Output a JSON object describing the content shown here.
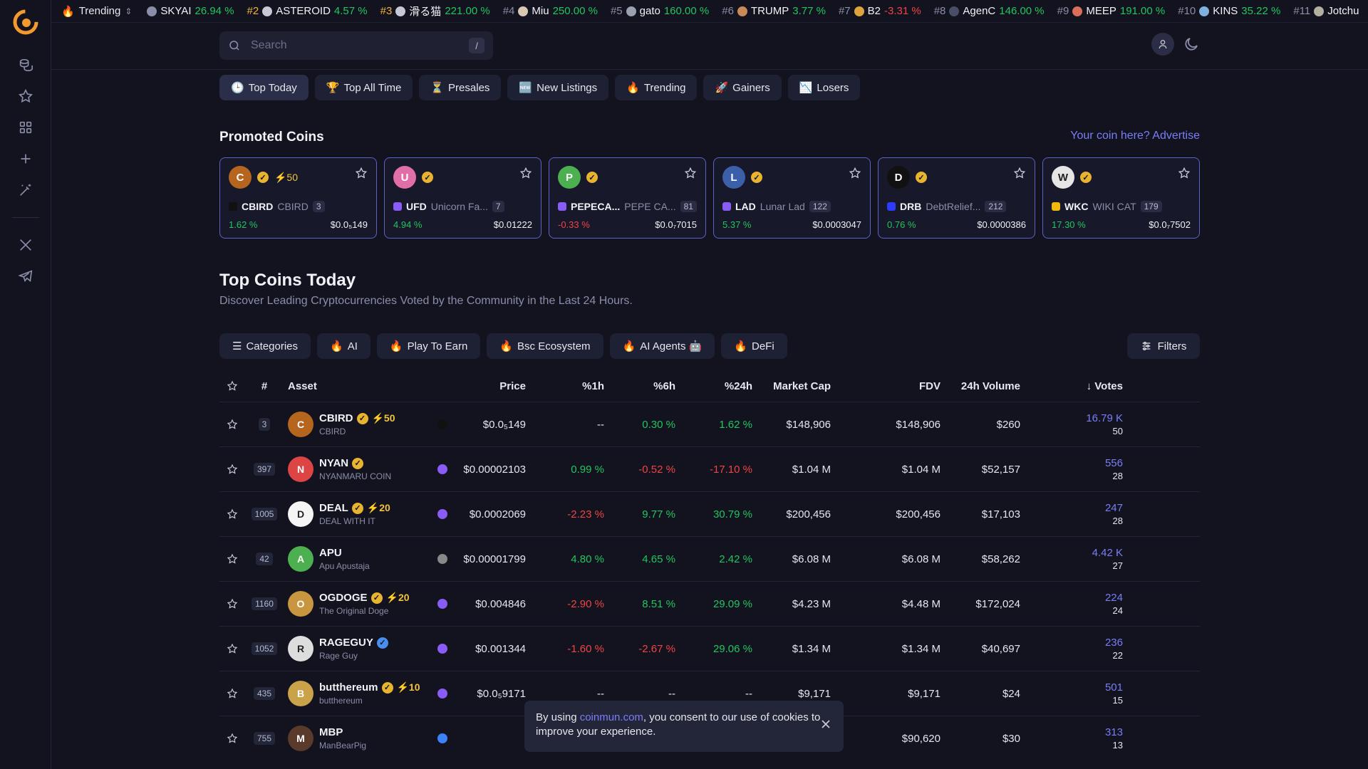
{
  "trending": {
    "label": "Trending",
    "items": [
      {
        "rank": "",
        "sym": "SKYAI",
        "change": "26.94 %",
        "dir": "pos",
        "color": "#8a8ea8"
      },
      {
        "rank": "#2",
        "sym": "ASTEROID",
        "change": "4.57 %",
        "dir": "pos",
        "color": "#c6c8d6"
      },
      {
        "rank": "#3",
        "sym": "滑る猫",
        "change": "221.00 %",
        "dir": "pos",
        "color": "#c6c8d6"
      },
      {
        "rank": "#4",
        "sym": "Miu",
        "change": "250.00 %",
        "dir": "pos",
        "color": "#d9c7b4"
      },
      {
        "rank": "#5",
        "sym": "gato",
        "change": "160.00 %",
        "dir": "pos",
        "color": "#9aa0b0"
      },
      {
        "rank": "#6",
        "sym": "TRUMP",
        "change": "3.77 %",
        "dir": "pos",
        "color": "#c98a5a"
      },
      {
        "rank": "#7",
        "sym": "B2",
        "change": "-3.31 %",
        "dir": "neg",
        "color": "#e0a33c"
      },
      {
        "rank": "#8",
        "sym": "AgenC",
        "change": "146.00 %",
        "dir": "pos",
        "color": "#4a4d66"
      },
      {
        "rank": "#9",
        "sym": "MEEP",
        "change": "191.00 %",
        "dir": "pos",
        "color": "#d96f5a"
      },
      {
        "rank": "#10",
        "sym": "KINS",
        "change": "35.22 %",
        "dir": "pos",
        "color": "#7fb0e0"
      },
      {
        "rank": "#11",
        "sym": "Jotchu",
        "change": "",
        "dir": "pos",
        "color": "#b4b0a0"
      }
    ]
  },
  "search": {
    "placeholder": "Search",
    "shortcut": "/"
  },
  "tabs": [
    {
      "icon": "🕒",
      "label": "Top Today"
    },
    {
      "icon": "🏆",
      "label": "Top All Time"
    },
    {
      "icon": "⏳",
      "label": "Presales"
    },
    {
      "icon": "🆕",
      "label": "New Listings"
    },
    {
      "icon": "🔥",
      "label": "Trending"
    },
    {
      "icon": "🚀",
      "label": "Gainers"
    },
    {
      "icon": "📉",
      "label": "Losers"
    }
  ],
  "promoted": {
    "title": "Promoted Coins",
    "advertise": "Your coin here? Advertise",
    "coins": [
      {
        "sym": "CBIRD",
        "name": "CBIRD",
        "badge": "3",
        "change": "1.62 %",
        "dir": "pos",
        "price": "$0.0₅149",
        "boost": "⚡50",
        "avatar": "#b5651d",
        "chain": "#111111",
        "initial": "C"
      },
      {
        "sym": "UFD",
        "name": "Unicorn Fa...",
        "badge": "7",
        "change": "4.94 %",
        "dir": "pos",
        "price": "$0.01222",
        "boost": "",
        "avatar": "#e06fa8",
        "chain": "#8a5cf6",
        "initial": "U"
      },
      {
        "sym": "PEPECA...",
        "name": "PEPE CA...",
        "badge": "81",
        "change": "-0.33 %",
        "dir": "neg",
        "price": "$0.0₇7015",
        "boost": "",
        "avatar": "#4caf50",
        "chain": "#8a5cf6",
        "initial": "P"
      },
      {
        "sym": "LAD",
        "name": "Lunar Lad",
        "badge": "122",
        "change": "5.37 %",
        "dir": "pos",
        "price": "$0.0003047",
        "boost": "",
        "avatar": "#3b5fa8",
        "chain": "#8a5cf6",
        "initial": "L"
      },
      {
        "sym": "DRB",
        "name": "DebtRelief...",
        "badge": "212",
        "change": "0.76 %",
        "dir": "pos",
        "price": "$0.0000386",
        "boost": "",
        "avatar": "#111111",
        "chain": "#2b3cff",
        "initial": "D"
      },
      {
        "sym": "WKC",
        "name": "WIKI CAT",
        "badge": "179",
        "change": "17.30 %",
        "dir": "pos",
        "price": "$0.0₇7502",
        "boost": "",
        "avatar": "#e6e6e6",
        "chain": "#f0b90b",
        "initial": "W"
      }
    ]
  },
  "section": {
    "title": "Top Coins Today",
    "subtitle": "Discover Leading Cryptocurrencies Voted by the Community in the Last 24 Hours."
  },
  "categories": [
    {
      "icon": "☰",
      "label": "Categories"
    },
    {
      "icon": "🔥",
      "label": "AI"
    },
    {
      "icon": "🔥",
      "label": "Play To Earn"
    },
    {
      "icon": "🔥",
      "label": "Bsc Ecosystem"
    },
    {
      "icon": "🔥",
      "label": "AI Agents 🤖"
    },
    {
      "icon": "🔥",
      "label": "DeFi"
    }
  ],
  "filters_label": "Filters",
  "table": {
    "headers": [
      "#",
      "Asset",
      "Price",
      "%1h",
      "%6h",
      "%24h",
      "Market Cap",
      "FDV",
      "24h Volume",
      "↓ Votes"
    ],
    "rows": [
      {
        "rank": "3",
        "name": "CBIRD",
        "sub": "CBIRD",
        "boost": "⚡50",
        "verified": "gold",
        "avatar": "#b5651d",
        "initial": "C",
        "chain": "#111111",
        "price": "$0.0₅149",
        "h1": "--",
        "h1d": "neu",
        "h6": "0.30 %",
        "h6d": "pos",
        "h24": "1.62 %",
        "h24d": "pos",
        "mcap": "$148,906",
        "fdv": "$148,906",
        "vol": "$260",
        "votes": "16.79 K",
        "votes_sub": "50"
      },
      {
        "rank": "397",
        "name": "NYAN",
        "sub": "NYANMARU COIN",
        "boost": "",
        "verified": "gold",
        "avatar": "#d44",
        "initial": "N",
        "chain": "#8a5cf6",
        "price": "$0.00002103",
        "h1": "0.99 %",
        "h1d": "pos",
        "h6": "-0.52 %",
        "h6d": "neg",
        "h24": "-17.10 %",
        "h24d": "neg",
        "mcap": "$1.04 M",
        "fdv": "$1.04 M",
        "vol": "$52,157",
        "votes": "556",
        "votes_sub": "28"
      },
      {
        "rank": "1005",
        "name": "DEAL",
        "sub": "DEAL WITH IT",
        "boost": "⚡20",
        "verified": "gold",
        "avatar": "#f5f5f5",
        "initial": "D",
        "chain": "#8a5cf6",
        "price": "$0.0002069",
        "h1": "-2.23 %",
        "h1d": "neg",
        "h6": "9.77 %",
        "h6d": "pos",
        "h24": "30.79 %",
        "h24d": "pos",
        "mcap": "$200,456",
        "fdv": "$200,456",
        "vol": "$17,103",
        "votes": "247",
        "votes_sub": "28"
      },
      {
        "rank": "42",
        "name": "APU",
        "sub": "Apu Apustaja",
        "boost": "",
        "verified": "",
        "avatar": "#4caf50",
        "initial": "A",
        "chain": "#888888",
        "price": "$0.00001799",
        "h1": "4.80 %",
        "h1d": "pos",
        "h6": "4.65 %",
        "h6d": "pos",
        "h24": "2.42 %",
        "h24d": "pos",
        "mcap": "$6.08 M",
        "fdv": "$6.08 M",
        "vol": "$58,262",
        "votes": "4.42 K",
        "votes_sub": "27"
      },
      {
        "rank": "1160",
        "name": "OGDOGE",
        "sub": "The Original Doge",
        "boost": "⚡20",
        "verified": "gold",
        "avatar": "#c8963e",
        "initial": "O",
        "chain": "#8a5cf6",
        "price": "$0.004846",
        "h1": "-2.90 %",
        "h1d": "neg",
        "h6": "8.51 %",
        "h6d": "pos",
        "h24": "29.09 %",
        "h24d": "pos",
        "mcap": "$4.23 M",
        "fdv": "$4.48 M",
        "vol": "$172,024",
        "votes": "224",
        "votes_sub": "24"
      },
      {
        "rank": "1052",
        "name": "RAGEGUY",
        "sub": "Rage Guy",
        "boost": "",
        "verified": "blue",
        "avatar": "#dddddd",
        "initial": "R",
        "chain": "#8a5cf6",
        "price": "$0.001344",
        "h1": "-1.60 %",
        "h1d": "neg",
        "h6": "-2.67 %",
        "h6d": "neg",
        "h24": "29.06 %",
        "h24d": "pos",
        "mcap": "$1.34 M",
        "fdv": "$1.34 M",
        "vol": "$40,697",
        "votes": "236",
        "votes_sub": "22"
      },
      {
        "rank": "435",
        "name": "butthereum",
        "sub": "butthereum",
        "boost": "⚡10",
        "verified": "gold",
        "avatar": "#c9a24a",
        "initial": "B",
        "chain": "#8a5cf6",
        "price": "$0.0₅9171",
        "h1": "--",
        "h1d": "neu",
        "h6": "--",
        "h6d": "neu",
        "h24": "--",
        "h24d": "neu",
        "mcap": "$9,171",
        "fdv": "$9,171",
        "vol": "$24",
        "votes": "501",
        "votes_sub": "15"
      },
      {
        "rank": "755",
        "name": "MBP",
        "sub": "ManBearPig",
        "boost": "",
        "verified": "",
        "avatar": "#5a3a2a",
        "initial": "M",
        "chain": "#3b82f6",
        "price": "",
        "h1": "",
        "h1d": "neu",
        "h6": "",
        "h6d": "neu",
        "h24": "",
        "h24d": "neu",
        "mcap": "$90,620",
        "fdv": "$90,620",
        "vol": "$30",
        "votes": "313",
        "votes_sub": "13"
      }
    ]
  },
  "cookie": {
    "prefix": "By using ",
    "link": "coinmun.com",
    "suffix": ", you consent to our use of cookies to improve your experience."
  }
}
